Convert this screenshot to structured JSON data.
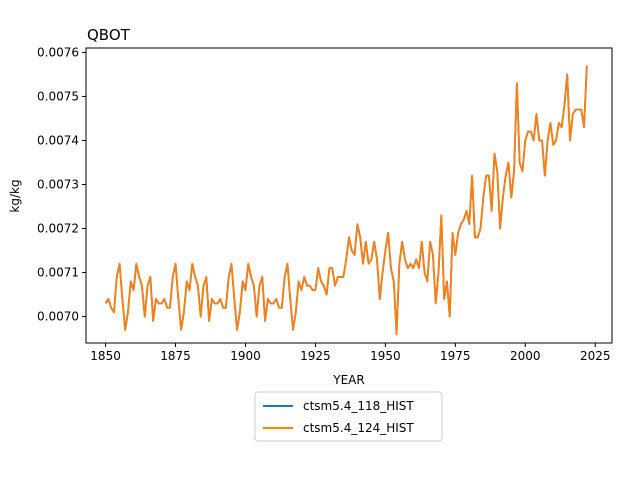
{
  "chart_data": {
    "type": "line",
    "title": "QBOT",
    "xlabel": "YEAR",
    "ylabel": "kg/kg",
    "xlim": [
      1843,
      2031
    ],
    "ylim": [
      0.00694,
      0.00761
    ],
    "xticks": [
      1850,
      1875,
      1900,
      1925,
      1950,
      1975,
      2000,
      2025
    ],
    "xtick_labels": [
      "1850",
      "1875",
      "1900",
      "1925",
      "1950",
      "1975",
      "2000",
      "2025"
    ],
    "yticks": [
      0.007,
      0.0071,
      0.0072,
      0.0073,
      0.0074,
      0.0075,
      0.0076
    ],
    "ytick_labels": [
      "0.0070",
      "0.0071",
      "0.0072",
      "0.0073",
      "0.0074",
      "0.0075",
      "0.0076"
    ],
    "grid": false,
    "legend_position": "below plot, center",
    "x_start": 1850,
    "x_end": 2023,
    "series": [
      {
        "name": "ctsm5.4_118_HIST",
        "color": "#1f77b4",
        "values": [
          0.00703,
          0.00704,
          0.00702,
          0.00701,
          0.00709,
          0.00712,
          0.00704,
          0.00697,
          0.00701,
          0.00708,
          0.00706,
          0.00712,
          0.00709,
          0.00707,
          0.007,
          0.00707,
          0.00709,
          0.00699,
          0.00704,
          0.00703,
          0.00703,
          0.00704,
          0.00702,
          0.00702,
          0.00709,
          0.00712,
          0.00704,
          0.00697,
          0.00701,
          0.00708,
          0.00706,
          0.00712,
          0.00709,
          0.00707,
          0.007,
          0.00707,
          0.00709,
          0.00699,
          0.00704,
          0.00703,
          0.00703,
          0.00704,
          0.00702,
          0.00702,
          0.00709,
          0.00712,
          0.00704,
          0.00697,
          0.00701,
          0.00708,
          0.00706,
          0.00712,
          0.00709,
          0.00707,
          0.007,
          0.00707,
          0.00709,
          0.00699,
          0.00704,
          0.00703,
          0.00703,
          0.00704,
          0.00702,
          0.00702,
          0.00709,
          0.00712,
          0.00704,
          0.00697,
          0.00701,
          0.00708,
          0.00706,
          0.00709,
          0.00707,
          0.00707,
          0.00706,
          0.00706,
          0.00711,
          0.00708,
          0.00707,
          0.00705,
          0.00711,
          0.00711,
          0.00707,
          0.00709,
          0.00709,
          0.00709,
          0.00713,
          0.00718,
          0.00715,
          0.00714,
          0.00721,
          0.00718,
          0.00712,
          0.00717,
          0.00712,
          0.00713,
          0.00717,
          0.00713,
          0.00704,
          0.0071,
          0.00715,
          0.00719,
          0.00711,
          0.00708,
          0.00696,
          0.00712,
          0.00717,
          0.00713,
          0.00711,
          0.00712,
          0.00711,
          0.00713,
          0.00711,
          0.00717,
          0.0071,
          0.00708,
          0.00717,
          0.00714,
          0.00703,
          0.0071,
          0.00723,
          0.00704,
          0.00708,
          0.007,
          0.00719,
          0.00714,
          0.00719,
          0.00721,
          0.00722,
          0.00724,
          0.00721,
          0.00732,
          0.00718,
          0.00718,
          0.0072,
          0.00727,
          0.00732,
          0.00732,
          0.00724,
          0.00737,
          0.00733,
          0.0072,
          0.00727,
          0.00732,
          0.00735,
          0.00727,
          0.00733,
          0.00753,
          0.00735,
          0.00733,
          0.0074,
          0.00742,
          0.00742,
          0.0074,
          0.00746,
          0.0074,
          0.0074,
          0.00732,
          0.0074,
          0.00744,
          0.00739,
          0.0074,
          0.00744,
          0.00743,
          0.00748,
          0.00755,
          0.0074,
          0.00746,
          0.00747,
          0.00747,
          0.00747,
          0.00743,
          0.00757
        ]
      },
      {
        "name": "ctsm5.4_124_HIST",
        "color": "#ff7f0e",
        "values": [
          0.00703,
          0.00704,
          0.00702,
          0.00701,
          0.00709,
          0.00712,
          0.00704,
          0.00697,
          0.00701,
          0.00708,
          0.00706,
          0.00712,
          0.00709,
          0.00707,
          0.007,
          0.00707,
          0.00709,
          0.00699,
          0.00704,
          0.00703,
          0.00703,
          0.00704,
          0.00702,
          0.00702,
          0.00709,
          0.00712,
          0.00704,
          0.00697,
          0.00701,
          0.00708,
          0.00706,
          0.00712,
          0.00709,
          0.00707,
          0.007,
          0.00707,
          0.00709,
          0.00699,
          0.00704,
          0.00703,
          0.00703,
          0.00704,
          0.00702,
          0.00702,
          0.00709,
          0.00712,
          0.00704,
          0.00697,
          0.00701,
          0.00708,
          0.00706,
          0.00712,
          0.00709,
          0.00707,
          0.007,
          0.00707,
          0.00709,
          0.00699,
          0.00704,
          0.00703,
          0.00703,
          0.00704,
          0.00702,
          0.00702,
          0.00709,
          0.00712,
          0.00704,
          0.00697,
          0.00701,
          0.00708,
          0.00706,
          0.00709,
          0.00707,
          0.00707,
          0.00706,
          0.00706,
          0.00711,
          0.00708,
          0.00707,
          0.00705,
          0.00711,
          0.00711,
          0.00707,
          0.00709,
          0.00709,
          0.00709,
          0.00713,
          0.00718,
          0.00715,
          0.00714,
          0.00721,
          0.00718,
          0.00712,
          0.00717,
          0.00712,
          0.00713,
          0.00717,
          0.00713,
          0.00704,
          0.0071,
          0.00715,
          0.00719,
          0.00711,
          0.00708,
          0.00696,
          0.00712,
          0.00717,
          0.00713,
          0.00711,
          0.00712,
          0.00711,
          0.00713,
          0.00711,
          0.00717,
          0.0071,
          0.00708,
          0.00717,
          0.00714,
          0.00703,
          0.0071,
          0.00723,
          0.00704,
          0.00708,
          0.007,
          0.00719,
          0.00714,
          0.00719,
          0.00721,
          0.00722,
          0.00724,
          0.00721,
          0.00732,
          0.00718,
          0.00718,
          0.0072,
          0.00727,
          0.00732,
          0.00732,
          0.00724,
          0.00737,
          0.00733,
          0.0072,
          0.00727,
          0.00732,
          0.00735,
          0.00727,
          0.00733,
          0.00753,
          0.00735,
          0.00733,
          0.0074,
          0.00742,
          0.00742,
          0.0074,
          0.00746,
          0.0074,
          0.0074,
          0.00732,
          0.0074,
          0.00744,
          0.00739,
          0.0074,
          0.00744,
          0.00743,
          0.00748,
          0.00755,
          0.0074,
          0.00746,
          0.00747,
          0.00747,
          0.00747,
          0.00743,
          0.00757
        ]
      }
    ]
  }
}
